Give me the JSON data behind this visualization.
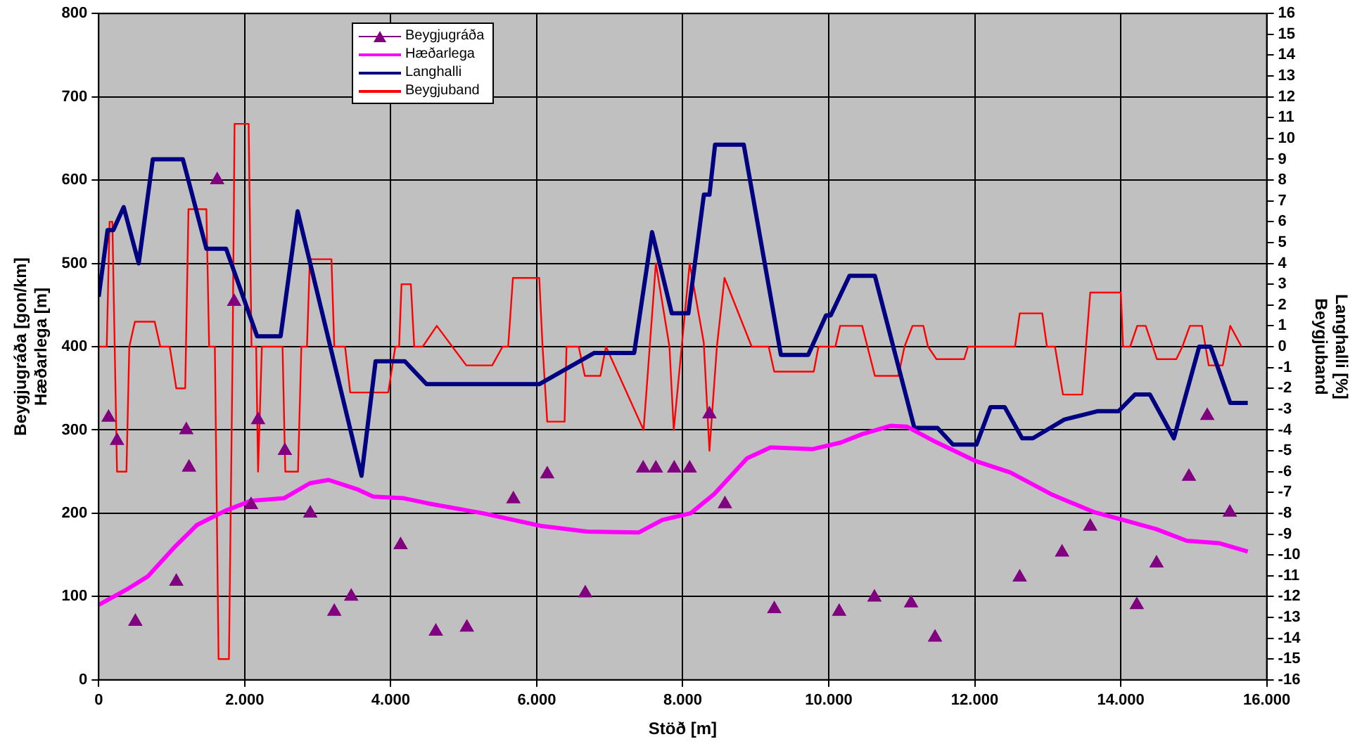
{
  "chart_data": {
    "type": "line",
    "xlabel": "Stöð [m]",
    "ylabel": "Beygjugráða [gon/km]\nHæðarlega [m]",
    "y2label": "Langhalli [%]\nBeygjuband",
    "xlim": [
      0,
      16000
    ],
    "xticks": [
      {
        "value": 0,
        "label": "0"
      },
      {
        "value": 2000,
        "label": "2.000"
      },
      {
        "value": 4000,
        "label": "4.000"
      },
      {
        "value": 6000,
        "label": "6.000"
      },
      {
        "value": 8000,
        "label": "8.000"
      },
      {
        "value": 10000,
        "label": "10.000"
      },
      {
        "value": 12000,
        "label": "12.000"
      },
      {
        "value": 14000,
        "label": "14.000"
      },
      {
        "value": 16000,
        "label": "16.000"
      }
    ],
    "ylim": [
      0,
      800
    ],
    "yticks": [
      0,
      100,
      200,
      300,
      400,
      500,
      600,
      700,
      800
    ],
    "y2lim": [
      -16,
      16
    ],
    "y2ticks": [
      -16,
      -15,
      -14,
      -13,
      -12,
      -11,
      -10,
      -9,
      -8,
      -7,
      -6,
      -5,
      -4,
      -3,
      -2,
      -1,
      0,
      1,
      2,
      3,
      4,
      5,
      6,
      7,
      8,
      9,
      10,
      11,
      12,
      13,
      14,
      15,
      16
    ],
    "grid": true,
    "legend": "top left",
    "series": [
      {
        "name": "Beygjugráða",
        "type": "scatter",
        "marker": "triangle",
        "color": "#800080",
        "x": [
          135,
          251,
          502,
          1063,
          1200,
          1237,
          1623,
          1855,
          2087,
          2183,
          2550,
          2898,
          3227,
          3459,
          4135,
          4618,
          5043,
          5680,
          6144,
          6665,
          7458,
          7632,
          7883,
          8095,
          8366,
          8578,
          9254,
          10143,
          10626,
          11128,
          11456,
          12616,
          13196,
          13582,
          14220,
          14490,
          14934,
          15185,
          15494
        ],
        "values": [
          315,
          287,
          70,
          118,
          300,
          255,
          600,
          454,
          210,
          312,
          275,
          200,
          82,
          100,
          162,
          58,
          63,
          217,
          247,
          104,
          254,
          254,
          254,
          254,
          319,
          211,
          85,
          82,
          99,
          92,
          51,
          123,
          153,
          184,
          90,
          140,
          244,
          317,
          201
        ]
      },
      {
        "name": "Hæðarlega",
        "type": "line",
        "marker": "none",
        "color": "#ff00ff",
        "x": [
          0,
          412,
          670,
          1024,
          1347,
          1733,
          2087,
          2537,
          2892,
          3149,
          3536,
          3761,
          4179,
          4502,
          5261,
          6047,
          6691,
          7400,
          7722,
          8109,
          8430,
          8881,
          9203,
          9782,
          10168,
          10458,
          10845,
          11070,
          11457,
          12003,
          12487,
          13067,
          13646,
          14032,
          14484,
          14902,
          15353,
          15740
        ],
        "values": [
          90,
          110,
          124,
          158,
          186,
          203,
          215,
          218,
          236,
          240,
          229,
          220,
          218,
          212,
          200,
          185,
          178,
          177,
          192,
          200,
          223,
          266,
          279,
          277,
          285,
          295,
          305,
          304,
          286,
          263,
          249,
          222,
          201,
          192,
          181,
          167,
          164,
          154
        ]
      },
      {
        "name": "Langhalli",
        "type": "line",
        "marker": "none",
        "axis": "y2",
        "color": "#000080",
        "x": [
          0,
          122,
          200,
          342,
          548,
          741,
          1153,
          1475,
          1745,
          2170,
          2492,
          2725,
          3600,
          3793,
          4193,
          4490,
          6035,
          6788,
          7335,
          7580,
          7850,
          8077,
          8290,
          8366,
          8443,
          8836,
          9345,
          9718,
          9963,
          10027,
          10284,
          10632,
          11173,
          11489,
          11702,
          12024,
          12216,
          12410,
          12649,
          12796,
          13228,
          13679,
          13969,
          14194,
          14400,
          14728,
          15075,
          15230,
          15500,
          15740
        ],
        "values": [
          2.4,
          5.6,
          5.6,
          6.7,
          4.0,
          9.0,
          9.0,
          4.7,
          4.7,
          0.5,
          0.5,
          6.5,
          -6.2,
          -0.7,
          -0.7,
          -1.8,
          -1.8,
          -0.3,
          -0.3,
          5.5,
          1.6,
          1.6,
          7.3,
          7.3,
          9.7,
          9.7,
          -0.4,
          -0.4,
          1.5,
          1.5,
          3.4,
          3.4,
          -3.9,
          -3.9,
          -4.7,
          -4.7,
          -2.9,
          -2.9,
          -4.4,
          -4.4,
          -3.5,
          -3.1,
          -3.1,
          -2.3,
          -2.3,
          -4.4,
          0,
          0,
          -2.7,
          -2.7
        ]
      },
      {
        "name": "Beygjuband",
        "type": "line",
        "marker": "none",
        "axis": "y2",
        "color": "#ff0000",
        "x": [
          0,
          110,
          149,
          187,
          251,
          380,
          419,
          496,
          767,
          844,
          972,
          1063,
          1185,
          1230,
          1475,
          1513,
          1591,
          1642,
          1784,
          1835,
          1861,
          2054,
          2093,
          2157,
          2183,
          2235,
          2518,
          2556,
          2730,
          2776,
          2853,
          2892,
          3188,
          3227,
          3375,
          3445,
          3966,
          4063,
          4115,
          4148,
          4276,
          4322,
          4438,
          4631,
          5036,
          5390,
          5532,
          5609,
          5674,
          6035,
          6080,
          6144,
          6382,
          6408,
          6575,
          6659,
          6872,
          6949,
          7464,
          7632,
          7818,
          7877,
          8095,
          8288,
          8366,
          8468,
          8572,
          8945,
          9177,
          9254,
          9795,
          9859,
          10091,
          10156,
          10458,
          10632,
          10954,
          11038,
          11148,
          11296,
          11360,
          11476,
          11856,
          11907,
          12552,
          12616,
          12925,
          12989,
          13099,
          13209,
          13472,
          13582,
          14001,
          14032,
          14129,
          14226,
          14342,
          14496,
          14761,
          14844,
          14947,
          15114,
          15205,
          15398,
          15500,
          15655
        ],
        "values": [
          0,
          0,
          6,
          6,
          -6,
          -6,
          0,
          1.2,
          1.2,
          0,
          0,
          -2,
          -2,
          6.6,
          6.6,
          0,
          0,
          -15,
          -15,
          0,
          10.7,
          10.7,
          0,
          0,
          -6,
          0,
          0,
          -6,
          -6,
          0,
          0,
          4.2,
          4.2,
          0,
          0,
          -2.2,
          -2.2,
          0,
          0,
          3,
          3,
          0,
          0,
          1,
          -0.9,
          -0.9,
          0,
          0,
          3.3,
          3.3,
          0,
          -3.6,
          -3.6,
          0,
          0,
          -1.4,
          -1.4,
          0,
          -4,
          4,
          0,
          -4,
          4,
          0.2,
          -5,
          0,
          3.3,
          0,
          0,
          -1.2,
          -1.2,
          0,
          0,
          1,
          1,
          -1.4,
          -1.4,
          0,
          1,
          1,
          0,
          -0.6,
          -0.6,
          0,
          0,
          1.6,
          1.6,
          0,
          0,
          -2.3,
          -2.3,
          2.6,
          2.6,
          0,
          0,
          1,
          1,
          -0.6,
          -0.6,
          0,
          1,
          1,
          -0.9,
          -0.9,
          1,
          0
        ]
      }
    ]
  }
}
